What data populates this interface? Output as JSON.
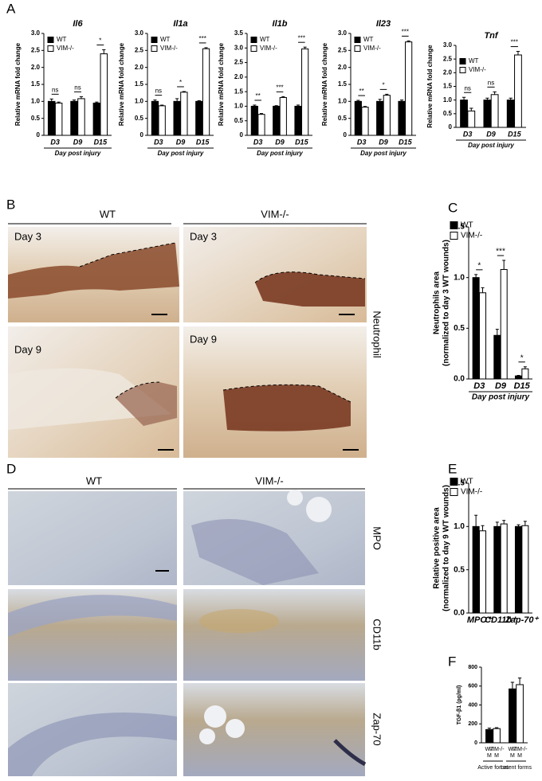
{
  "panels": {
    "letters": [
      "A",
      "B",
      "C",
      "D",
      "E",
      "F"
    ],
    "B": {
      "columns": [
        "WT",
        "VIM-/-"
      ],
      "days": [
        "Day 3",
        "Day 9"
      ],
      "stain": "Neutrophil"
    },
    "D": {
      "columns": [
        "WT",
        "VIM-/-"
      ],
      "stains": [
        "MPO",
        "CD11b",
        "Zap-70"
      ]
    }
  },
  "chart_data": [
    {
      "type": "bar",
      "title": "Il6",
      "ylabel": "Relative mRNA fold change",
      "xlabel": "Day post injury",
      "categories": [
        "D3",
        "D9",
        "D15"
      ],
      "series": [
        {
          "name": "WT",
          "color": "#000000",
          "values": [
            1.0,
            1.0,
            0.95
          ],
          "errors": [
            0.07,
            0.04,
            0.03
          ]
        },
        {
          "name": "VIM-/-",
          "color": "#ffffff",
          "values": [
            0.95,
            1.08,
            2.4
          ],
          "errors": [
            0.03,
            0.06,
            0.12
          ]
        }
      ],
      "ylim": [
        0,
        3
      ],
      "yticks": [
        0,
        0.5,
        {
          "value": 1,
          "label": "1.0"
        },
        1.5,
        {
          "value": 2,
          "label": "2.0"
        },
        2.5,
        {
          "value": 3,
          "label": "3.0"
        }
      ],
      "annotations": [
        "ns",
        "ns",
        "*"
      ],
      "legend": "upper left"
    },
    {
      "type": "bar",
      "title": "Il1a",
      "ylabel": "Relative mRNA fold change",
      "xlabel": "Day post injury",
      "categories": [
        "D3",
        "D9",
        "D15"
      ],
      "series": [
        {
          "name": "WT",
          "color": "#000000",
          "values": [
            1.0,
            1.0,
            1.0
          ],
          "errors": [
            0.04,
            0.08,
            0.02
          ]
        },
        {
          "name": "VIM-/-",
          "color": "#ffffff",
          "values": [
            0.87,
            1.27,
            2.55
          ],
          "errors": [
            0.02,
            0.02,
            0.03
          ]
        }
      ],
      "ylim": [
        0,
        3
      ],
      "yticks": [
        0,
        0.5,
        {
          "value": 1,
          "label": "1.0"
        },
        1.5,
        {
          "value": 2,
          "label": "2.0"
        },
        2.5,
        {
          "value": 3,
          "label": "3.0"
        }
      ],
      "annotations": [
        "ns",
        "*",
        "***"
      ],
      "legend": "upper left"
    },
    {
      "type": "bar",
      "title": "Il1b",
      "ylabel": "Relative mRNA fold change",
      "xlabel": "Day post injury",
      "categories": [
        "D3",
        "D9",
        "D15"
      ],
      "series": [
        {
          "name": "WT",
          "color": "#000000",
          "values": [
            1.0,
            1.0,
            1.0
          ],
          "errors": [
            0.04,
            0.02,
            0.04
          ]
        },
        {
          "name": "VIM-/-",
          "color": "#ffffff",
          "values": [
            0.72,
            1.3,
            2.97
          ],
          "errors": [
            0.03,
            0.03,
            0.06
          ]
        }
      ],
      "ylim": [
        0,
        3.5
      ],
      "yticks": [
        0,
        0.5,
        {
          "value": 1,
          "label": "1.0"
        },
        1.5,
        {
          "value": 2,
          "label": "2.0"
        },
        2.5,
        {
          "value": 3,
          "label": "3.0"
        },
        3.5
      ],
      "annotations": [
        "**",
        "***",
        "***"
      ],
      "legend": "upper left"
    },
    {
      "type": "bar",
      "title": "Il23",
      "ylabel": "Relative mRNA fold change",
      "xlabel": "Day post injury",
      "categories": [
        "D3",
        "D9",
        "D15"
      ],
      "series": [
        {
          "name": "WT",
          "color": "#000000",
          "values": [
            1.0,
            1.0,
            1.0
          ],
          "errors": [
            0.03,
            0.06,
            0.04
          ]
        },
        {
          "name": "VIM-/-",
          "color": "#ffffff",
          "values": [
            0.83,
            1.18,
            2.75
          ],
          "errors": [
            0.02,
            0.03,
            0.03
          ]
        }
      ],
      "ylim": [
        0,
        3
      ],
      "yticks": [
        0,
        0.5,
        {
          "value": 1,
          "label": "1.0"
        },
        1.5,
        {
          "value": 2,
          "label": "2.0"
        },
        2.5,
        {
          "value": 3,
          "label": "3.0"
        }
      ],
      "annotations": [
        "**",
        "*",
        "***"
      ],
      "legend": "upper left"
    },
    {
      "type": "bar",
      "title": "Tnf",
      "ylabel": "Relative mRNA fold change",
      "xlabel": "Day post injury",
      "categories": [
        "D3",
        "D9",
        "D15"
      ],
      "series": [
        {
          "name": "WT",
          "color": "#000000",
          "values": [
            1.0,
            1.0,
            1.0
          ],
          "errors": [
            0.1,
            0.07,
            0.07
          ]
        },
        {
          "name": "VIM-/-",
          "color": "#ffffff",
          "values": [
            0.6,
            1.2,
            2.65
          ],
          "errors": [
            0.1,
            0.1,
            0.13
          ]
        }
      ],
      "ylim": [
        0,
        3
      ],
      "yticks": [
        0,
        0.5,
        {
          "value": 1,
          "label": "1.0"
        },
        1.5,
        {
          "value": 2,
          "label": "2.0"
        },
        2.5,
        {
          "value": 3,
          "label": "3.0"
        }
      ],
      "annotations": [
        "ns",
        "ns",
        "***"
      ],
      "legend": "upper left"
    },
    {
      "type": "bar",
      "ylabel": [
        "Neutrophils area",
        "(normalized to day 3 WT wounds)"
      ],
      "xlabel": "Day post injury",
      "categories": [
        "D3",
        "D9",
        "D15"
      ],
      "series": [
        {
          "name": "WT",
          "color": "#000000",
          "values": [
            1.0,
            0.43,
            0.03
          ],
          "errors": [
            0.03,
            0.06,
            0.005
          ]
        },
        {
          "name": "VIM-/-",
          "color": "#ffffff",
          "values": [
            0.85,
            1.08,
            0.1
          ],
          "errors": [
            0.05,
            0.09,
            0.02
          ]
        }
      ],
      "ylim": [
        0,
        1.5
      ],
      "yticks": [
        {
          "value": 0,
          "label": "0.0"
        },
        0.5,
        {
          "value": 1,
          "label": "1.0"
        },
        1.5
      ],
      "annotations": [
        "*",
        "***",
        "*"
      ],
      "legend": "upper left"
    },
    {
      "type": "bar",
      "ylabel": [
        "Relative positive area",
        "(normalized to day 9 WT wounds)"
      ],
      "categories": [
        "MPO⁺",
        "CD11b⁺",
        "Zap-70⁺"
      ],
      "series": [
        {
          "name": "WT",
          "color": "#000000",
          "values": [
            1.0,
            1.0,
            1.0
          ],
          "errors": [
            0.13,
            0.05,
            0.02
          ]
        },
        {
          "name": "VIM-/-",
          "color": "#ffffff",
          "values": [
            0.95,
            1.03,
            1.01
          ],
          "errors": [
            0.06,
            0.04,
            0.05
          ]
        }
      ],
      "ylim": [
        0,
        1.5
      ],
      "yticks": [
        {
          "value": 0,
          "label": "0.0"
        },
        0.5,
        {
          "value": 1,
          "label": "1.0"
        },
        1.5
      ],
      "legend": "upper left"
    },
    {
      "type": "bar",
      "ylabel": "TGF-β1 (pg/ml)",
      "categories": [
        "Active forms",
        "Latent forms"
      ],
      "sublabel": "M",
      "series": [
        {
          "name": "WT",
          "color": "#000000",
          "values": [
            140,
            570
          ],
          "errors": [
            15,
            70
          ]
        },
        {
          "name": "VIM-/-",
          "color": "#ffffff",
          "values": [
            150,
            615
          ],
          "errors": [
            10,
            70
          ]
        }
      ],
      "ylim": [
        0,
        800
      ],
      "yticks": [
        0,
        200,
        400,
        600,
        800
      ]
    }
  ]
}
